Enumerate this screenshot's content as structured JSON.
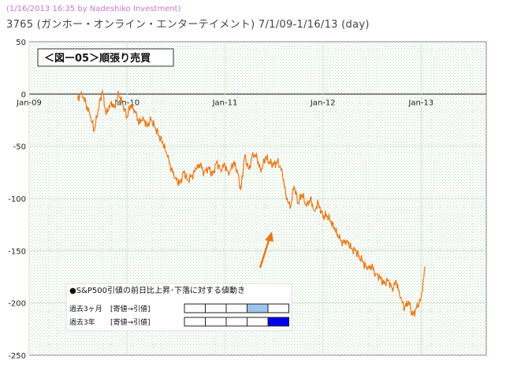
{
  "credit": "(1/16/2013 16:35 by Nadeshiko Investment)",
  "title": "3765 (ガンホー・オンライン・エンターテイメント) 7/1/09-1/16/13 (day)",
  "chart_data": {
    "type": "line",
    "title": "＜図ー05＞順張り売買",
    "ylim": [
      -250,
      50
    ],
    "yticks": [
      "50",
      "0",
      "-50",
      "-100",
      "-150",
      "-200",
      "-250"
    ],
    "xticks": [
      "Jan-09",
      "Jan-10",
      "Jan-11",
      "Jan-12",
      "Jan-13"
    ],
    "grid": true,
    "line_color": "#e87818",
    "series": [
      {
        "x": [
          "2009-07-01",
          "2009-07-15",
          "2009-08-01",
          "2009-08-15",
          "2009-09-01",
          "2009-09-15",
          "2009-10-01",
          "2009-10-15",
          "2009-11-01",
          "2009-11-15",
          "2009-12-01",
          "2009-12-15",
          "2010-01-01",
          "2010-01-15",
          "2010-02-01",
          "2010-02-15",
          "2010-03-01",
          "2010-03-15",
          "2010-04-01",
          "2010-04-15",
          "2010-05-01",
          "2010-05-15",
          "2010-06-01",
          "2010-06-15",
          "2010-07-01",
          "2010-07-15",
          "2010-08-01",
          "2010-08-15",
          "2010-09-01",
          "2010-09-15",
          "2010-10-01",
          "2010-10-15",
          "2010-11-01",
          "2010-11-15",
          "2010-12-01",
          "2010-12-15",
          "2011-01-01",
          "2011-01-15",
          "2011-02-01",
          "2011-02-15",
          "2011-03-01",
          "2011-03-15",
          "2011-04-01",
          "2011-04-15",
          "2011-05-01",
          "2011-05-15",
          "2011-06-01",
          "2011-06-15",
          "2011-07-01",
          "2011-07-15",
          "2011-08-01",
          "2011-08-15",
          "2011-09-01",
          "2011-09-15",
          "2011-10-01",
          "2011-10-15",
          "2011-11-01",
          "2011-11-15",
          "2011-12-01",
          "2011-12-15",
          "2012-01-01",
          "2012-01-15",
          "2012-02-01",
          "2012-02-15",
          "2012-03-01",
          "2012-03-15",
          "2012-04-01",
          "2012-04-15",
          "2012-05-01",
          "2012-05-15",
          "2012-06-01",
          "2012-06-15",
          "2012-07-01",
          "2012-07-15",
          "2012-08-01",
          "2012-08-15",
          "2012-09-01",
          "2012-09-15",
          "2012-10-01",
          "2012-10-15",
          "2012-11-01",
          "2012-11-15",
          "2012-12-01",
          "2012-12-15",
          "2013-01-01",
          "2013-01-16"
        ],
        "values": [
          -5,
          2,
          -10,
          -20,
          -35,
          -15,
          3,
          -20,
          -8,
          -12,
          0,
          -10,
          -22,
          -10,
          -18,
          -28,
          -22,
          -30,
          -25,
          -32,
          -40,
          -48,
          -60,
          -72,
          -80,
          -86,
          -75,
          -82,
          -78,
          -72,
          -68,
          -75,
          -70,
          -78,
          -65,
          -72,
          -68,
          -78,
          -66,
          -72,
          -92,
          -60,
          -72,
          -56,
          -62,
          -75,
          -60,
          -65,
          -68,
          -65,
          -72,
          -95,
          -110,
          -88,
          -104,
          -96,
          -108,
          -100,
          -112,
          -104,
          -118,
          -116,
          -122,
          -130,
          -138,
          -142,
          -140,
          -148,
          -150,
          -155,
          -162,
          -168,
          -165,
          -172,
          -175,
          -182,
          -178,
          -186,
          -180,
          -195,
          -205,
          -198,
          -212,
          -205,
          -195,
          -165
        ]
      }
    ],
    "annotation": {
      "heading": "●S&P500引値の前日比上昇･下落に対する値動き",
      "rows": [
        {
          "label": "過去3ヶ月",
          "sub": "[寄値→引値]",
          "fills": [
            "#ffffff",
            "#ffffff",
            "#ffffff",
            "#9ec4ec",
            "#ffffff"
          ]
        },
        {
          "label": "過去3年",
          "sub": "[寄値→引値]",
          "fills": [
            "#ffffff",
            "#ffffff",
            "#ffffff",
            "#ffffff",
            "#0000ee"
          ]
        }
      ]
    }
  }
}
